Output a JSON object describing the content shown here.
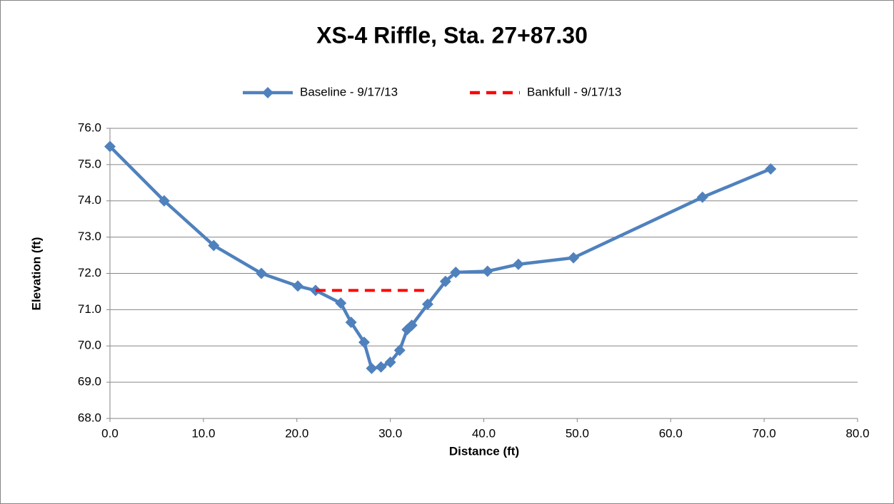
{
  "chart_data": {
    "type": "line",
    "title": "XS-4 Riffle, Sta. 27+87.30",
    "xlabel": "Distance (ft)",
    "ylabel": "Elevation (ft)",
    "series": [
      {
        "name": "Baseline - 9/17/13",
        "color": "#4f81bd",
        "marker": "diamond",
        "dashed": false,
        "x": [
          0,
          5.8,
          11.1,
          16.2,
          20.1,
          22.0,
          24.7,
          25.8,
          27.2,
          28.0,
          29.0,
          30.0,
          31.0,
          31.8,
          32.3,
          34.0,
          35.9,
          37.0,
          40.4,
          43.7,
          49.6,
          63.4,
          70.7
        ],
        "values": [
          75.5,
          74.0,
          72.77,
          72.0,
          71.65,
          71.53,
          71.18,
          70.65,
          70.1,
          69.38,
          69.42,
          69.55,
          69.88,
          70.45,
          70.57,
          71.15,
          71.78,
          72.03,
          72.06,
          72.25,
          72.43,
          74.1,
          74.88
        ]
      },
      {
        "name": "Bankfull - 9/17/13",
        "color": "#ff0000",
        "marker": "none",
        "dashed": true,
        "x": [
          22.0,
          34.3
        ],
        "values": [
          71.53,
          71.53
        ]
      }
    ],
    "xlim": [
      0,
      80
    ],
    "xticks": [
      {
        "value": 0,
        "label": "0.0"
      },
      {
        "value": 10,
        "label": "10.0"
      },
      {
        "value": 20,
        "label": "20.0"
      },
      {
        "value": 30,
        "label": "30.0"
      },
      {
        "value": 40,
        "label": "40.0"
      },
      {
        "value": 50,
        "label": "50.0"
      },
      {
        "value": 60,
        "label": "60.0"
      },
      {
        "value": 70,
        "label": "70.0"
      },
      {
        "value": 80,
        "label": "80.0"
      }
    ],
    "ylim": [
      68,
      76
    ],
    "yticks": [
      {
        "value": 68,
        "label": "68.0"
      },
      {
        "value": 69,
        "label": "69.0"
      },
      {
        "value": 70,
        "label": "70.0"
      },
      {
        "value": 71,
        "label": "71.0"
      },
      {
        "value": 72,
        "label": "72.0"
      },
      {
        "value": 73,
        "label": "73.0"
      },
      {
        "value": 74,
        "label": "74.0"
      },
      {
        "value": 75,
        "label": "75.0"
      },
      {
        "value": 76,
        "label": "76.0"
      }
    ],
    "grid": true,
    "legend": "top"
  }
}
